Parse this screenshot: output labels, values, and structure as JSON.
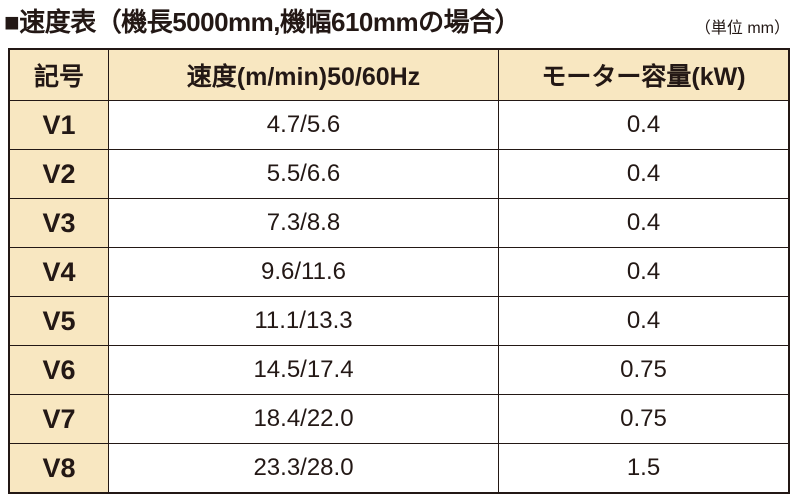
{
  "header": {
    "title": "■速度表（機長5000mm,機幅610mmの場合）",
    "unit": "（単位 mm）"
  },
  "table": {
    "columns": [
      "記号",
      "速度(m/min)50/60Hz",
      "モーター容量(kW)"
    ],
    "rows": [
      [
        "V1",
        "4.7/5.6",
        "0.4"
      ],
      [
        "V2",
        "5.5/6.6",
        "0.4"
      ],
      [
        "V3",
        "7.3/8.8",
        "0.4"
      ],
      [
        "V4",
        "9.6/11.6",
        "0.4"
      ],
      [
        "V5",
        "11.1/13.3",
        "0.4"
      ],
      [
        "V6",
        "14.5/17.4",
        "0.75"
      ],
      [
        "V7",
        "18.4/22.0",
        "0.75"
      ],
      [
        "V8",
        "23.3/28.0",
        "1.5"
      ]
    ]
  }
}
